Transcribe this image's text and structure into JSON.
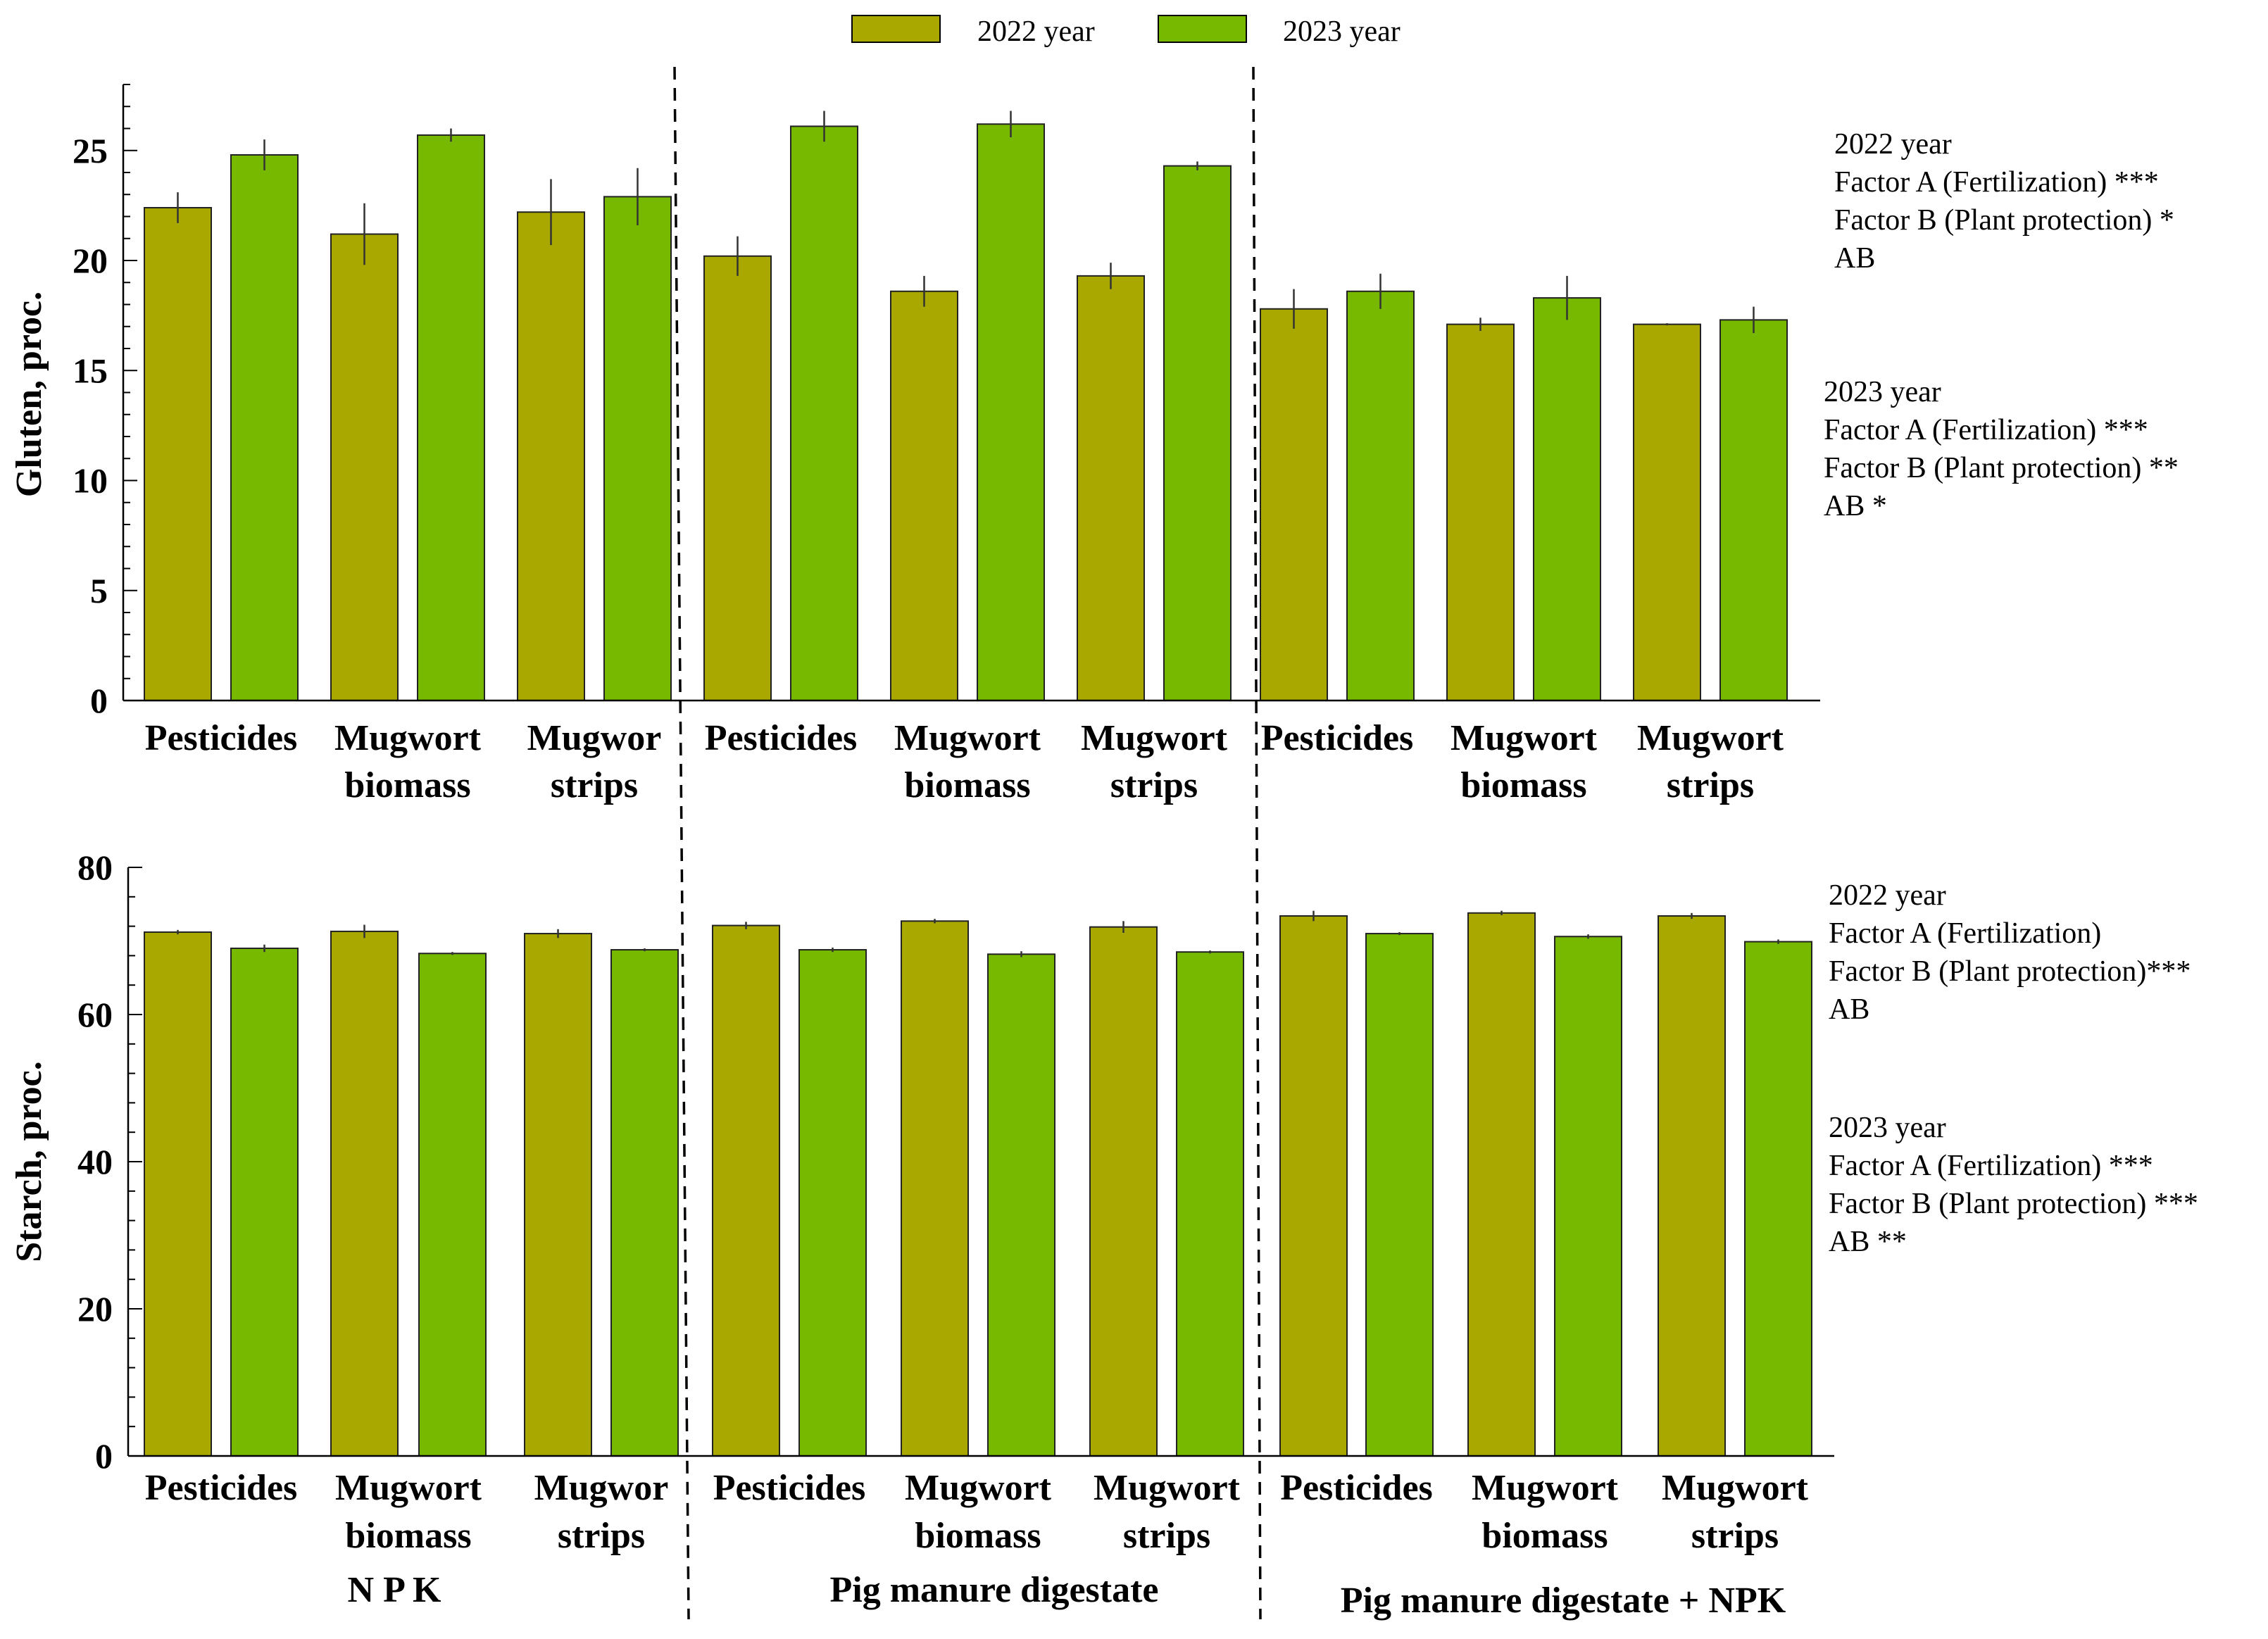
{
  "legend": {
    "items": [
      {
        "label": "2022 year",
        "color": "#a8a800"
      },
      {
        "label": "2023 year",
        "color": "#76b900"
      }
    ]
  },
  "chart_data": [
    {
      "type": "bar",
      "title": "",
      "ylabel": "Gluten, proc.",
      "xlabel": "",
      "ylim": [
        0,
        28
      ],
      "yticks": [
        0,
        5,
        10,
        15,
        20,
        25
      ],
      "categories": [
        [
          "Pesticides"
        ],
        [
          "Mugwort",
          "biomass"
        ],
        [
          "Mugwor",
          "strips"
        ],
        [
          "Pesticides"
        ],
        [
          "Mugwort",
          "biomass"
        ],
        [
          "Mugwort",
          "strips"
        ],
        [
          "Pesticides"
        ],
        [
          "Mugwort",
          "biomass"
        ],
        [
          "Mugwort",
          "strips"
        ]
      ],
      "series": [
        {
          "name": "2022 year",
          "values": [
            22.4,
            21.2,
            22.2,
            20.2,
            18.6,
            19.3,
            17.8,
            17.1,
            17.1
          ],
          "errors": [
            0.7,
            1.4,
            1.5,
            0.9,
            0.7,
            0.6,
            0.9,
            0.3,
            0.05
          ]
        },
        {
          "name": "2023 year",
          "values": [
            24.8,
            25.7,
            22.9,
            26.1,
            26.2,
            24.3,
            18.6,
            18.3,
            17.3
          ],
          "errors": [
            0.7,
            0.3,
            1.3,
            0.7,
            0.6,
            0.2,
            0.8,
            1.0,
            0.6
          ]
        }
      ],
      "annotations": [
        [
          "2022 year",
          "Factor A (Fertilization) ***",
          "Factor B (Plant protection) *",
          "AB"
        ],
        [
          "2023 year",
          "Factor A (Fertilization) ***",
          "Factor B (Plant protection) **",
          "AB *"
        ]
      ]
    },
    {
      "type": "bar",
      "title": "",
      "ylabel": "Starch, proc.",
      "xlabel": "",
      "ylim": [
        0,
        80
      ],
      "yticks": [
        0,
        20,
        40,
        60,
        80
      ],
      "categories": [
        [
          "Pesticides"
        ],
        [
          "Mugwort",
          "biomass"
        ],
        [
          "Mugwor",
          "strips"
        ],
        [
          "Pesticides"
        ],
        [
          "Mugwort",
          "biomass"
        ],
        [
          "Mugwort",
          "strips"
        ],
        [
          "Pesticides"
        ],
        [
          "Mugwort",
          "biomass"
        ],
        [
          "Mugwort",
          "strips"
        ]
      ],
      "groups": [
        "N P K",
        "Pig manure digestate",
        "Pig manure digestate + NPK"
      ],
      "series": [
        {
          "name": "2022 year",
          "values": [
            71.2,
            71.3,
            71.0,
            72.1,
            72.7,
            71.9,
            73.4,
            73.8,
            73.4
          ],
          "errors": [
            0.3,
            0.9,
            0.6,
            0.5,
            0.3,
            0.8,
            0.7,
            0.3,
            0.4
          ]
        },
        {
          "name": "2023 year",
          "values": [
            69.0,
            68.3,
            68.8,
            68.8,
            68.2,
            68.5,
            71.0,
            70.6,
            69.9
          ],
          "errors": [
            0.5,
            0.2,
            0.2,
            0.3,
            0.4,
            0.2,
            0.2,
            0.3,
            0.3
          ]
        }
      ],
      "annotations": [
        [
          "2022 year",
          "Factor A (Fertilization)",
          "Factor B (Plant protection)***",
          "AB"
        ],
        [
          "2023 year",
          "Factor A (Fertilization) ***",
          "Factor B (Plant protection) ***",
          "AB **"
        ]
      ]
    }
  ]
}
